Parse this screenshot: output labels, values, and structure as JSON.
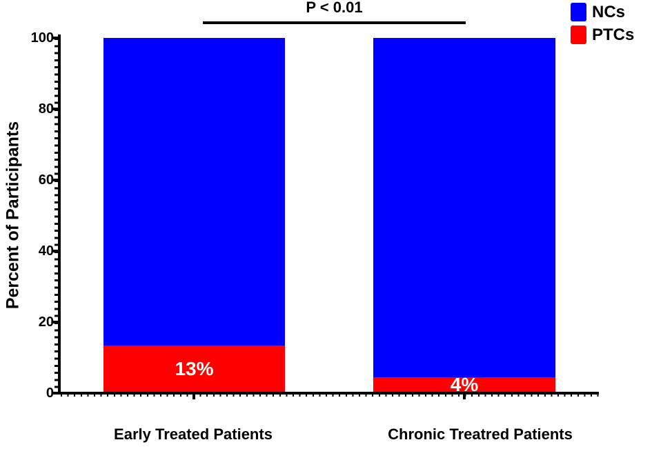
{
  "chart_data": {
    "type": "bar",
    "stacked": true,
    "ylabel": "Percent of Participants",
    "ylim": [
      0,
      100
    ],
    "yticks": [
      "0",
      "20",
      "40",
      "60",
      "80",
      "100"
    ],
    "minor_ticks_every": 2,
    "grid": false,
    "axis_color": "#000000",
    "categories": [
      "Early Treated Patients",
      "Chronic Treatred Patients"
    ],
    "series": [
      {
        "name": "NCs",
        "color": "#0000ff",
        "values": [
          87,
          96
        ]
      },
      {
        "name": "PTCs",
        "color": "#ff0000",
        "values": [
          13,
          4
        ]
      }
    ],
    "bar_value_labels": [
      "13%",
      "4%"
    ],
    "bar_value_label_color": "#ffffff",
    "annotation": {
      "text": "P < 0.01"
    },
    "legend": {
      "position": "top-right",
      "entries": [
        {
          "label": "NCs",
          "color": "#0000ff"
        },
        {
          "label": "PTCs",
          "color": "#ff0000"
        }
      ]
    }
  }
}
